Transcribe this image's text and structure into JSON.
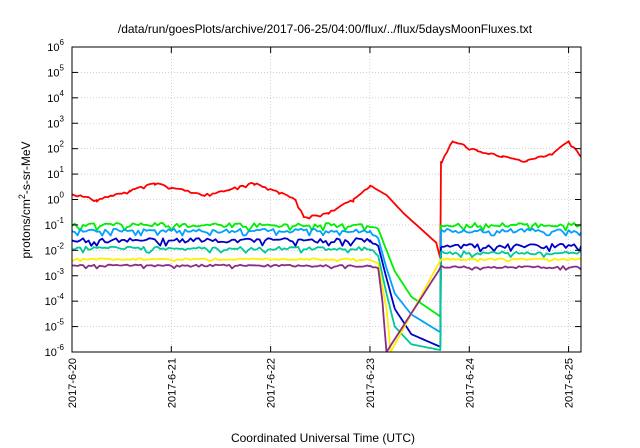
{
  "chart_data": {
    "type": "line",
    "title": "/data/run/goesPlots/archive/2017-06-25/04:00/flux/../flux/5daysMoonFluxes.txt",
    "xlabel": "Coordinated Universal Time (UTC)",
    "ylabel": "protons/cm²-s-sr-MeV",
    "y_scale": "log",
    "ylim": [
      1e-06,
      1000000.0
    ],
    "xlim": [
      "2017-06-20 00:00",
      "2017-06-25 03:00"
    ],
    "x_tick_labels": [
      "2017-6-20",
      "2017-6-21",
      "2017-6-22",
      "2017-6-23",
      "2017-6-24",
      "2017-6-25"
    ],
    "y_tick_labels": [
      {
        "base": "10",
        "exp": "-6"
      },
      {
        "base": "10",
        "exp": "-5"
      },
      {
        "base": "10",
        "exp": "-4"
      },
      {
        "base": "10",
        "exp": "-3"
      },
      {
        "base": "10",
        "exp": "-2"
      },
      {
        "base": "10",
        "exp": "-1"
      },
      {
        "base": "10",
        "exp": "0"
      },
      {
        "base": "10",
        "exp": "1"
      },
      {
        "base": "10",
        "exp": "2"
      },
      {
        "base": "10",
        "exp": "3"
      },
      {
        "base": "10",
        "exp": "4"
      },
      {
        "base": "10",
        "exp": "5"
      },
      {
        "base": "10",
        "exp": "6"
      }
    ],
    "grid": true,
    "legend": "none",
    "series": [
      {
        "color": "#ff0000",
        "noise": 0.04,
        "points": [
          [
            "2017-06-20 00:00",
            1.6
          ],
          [
            "2017-06-20 06:00",
            1.0
          ],
          [
            "2017-06-20 14:00",
            2.2
          ],
          [
            "2017-06-20 20:00",
            4.5
          ],
          [
            "2017-06-21 00:00",
            3.0
          ],
          [
            "2017-06-21 08:00",
            1.5
          ],
          [
            "2017-06-21 14:00",
            2.5
          ],
          [
            "2017-06-21 20:00",
            4.5
          ],
          [
            "2017-06-22 02:00",
            2.0
          ],
          [
            "2017-06-22 06:00",
            1.0
          ],
          [
            "2017-06-22 08:00",
            0.2
          ],
          [
            "2017-06-22 14:00",
            0.3
          ],
          [
            "2017-06-22 20:00",
            1.0
          ],
          [
            "2017-06-23 00:00",
            3.5
          ],
          [
            "2017-06-23 04:00",
            1.5
          ],
          [
            "2017-06-23 08:00",
            0.3
          ],
          [
            "2017-06-23 16:00",
            0.02
          ],
          [
            "2017-06-23 17:00",
            0.005
          ],
          [
            "2017-06-23 17:10",
            30
          ],
          [
            "2017-06-23 20:00",
            200
          ],
          [
            "2017-06-24 02:00",
            80
          ],
          [
            "2017-06-24 08:00",
            50
          ],
          [
            "2017-06-24 14:00",
            35
          ],
          [
            "2017-06-24 20:00",
            60
          ],
          [
            "2017-06-25 00:00",
            200
          ],
          [
            "2017-06-25 03:00",
            50
          ]
        ]
      },
      {
        "color": "#00ee00",
        "noise": 0.1,
        "points": [
          [
            "2017-06-20 00:00",
            0.1
          ],
          [
            "2017-06-23 00:00",
            0.1
          ],
          [
            "2017-06-23 02:00",
            0.07
          ],
          [
            "2017-06-23 04:00",
            0.01
          ],
          [
            "2017-06-23 06:00",
            0.0015
          ],
          [
            "2017-06-23 10:00",
            0.00015
          ],
          [
            "2017-06-23 17:00",
            2.5e-05
          ],
          [
            "2017-06-23 17:10",
            0.1
          ],
          [
            "2017-06-25 03:00",
            0.1
          ]
        ]
      },
      {
        "color": "#00a0ff",
        "noise": 0.09,
        "points": [
          [
            "2017-06-20 00:00",
            0.06
          ],
          [
            "2017-06-23 00:00",
            0.06
          ],
          [
            "2017-06-23 02:00",
            0.03
          ],
          [
            "2017-06-23 04:00",
            0.002
          ],
          [
            "2017-06-23 06:00",
            0.0002
          ],
          [
            "2017-06-23 10:00",
            3e-05
          ],
          [
            "2017-06-23 17:00",
            6e-06
          ],
          [
            "2017-06-23 17:10",
            0.06
          ],
          [
            "2017-06-25 03:00",
            0.06
          ]
        ]
      },
      {
        "color": "#0000c8",
        "noise": 0.1,
        "points": [
          [
            "2017-06-20 00:00",
            0.025
          ],
          [
            "2017-06-23 00:00",
            0.025
          ],
          [
            "2017-06-23 02:00",
            0.015
          ],
          [
            "2017-06-23 04:00",
            0.0008
          ],
          [
            "2017-06-23 06:00",
            5e-05
          ],
          [
            "2017-06-23 10:00",
            5e-06
          ],
          [
            "2017-06-23 17:00",
            1.6e-06
          ],
          [
            "2017-06-23 17:10",
            0.015
          ],
          [
            "2017-06-25 03:00",
            0.015
          ]
        ]
      },
      {
        "color": "#00c896",
        "noise": 0.08,
        "points": [
          [
            "2017-06-20 00:00",
            0.012
          ],
          [
            "2017-06-23 00:00",
            0.012
          ],
          [
            "2017-06-23 02:00",
            0.006
          ],
          [
            "2017-06-23 04:00",
            0.0002
          ],
          [
            "2017-06-23 06:00",
            1e-05
          ],
          [
            "2017-06-23 10:00",
            2e-06
          ],
          [
            "2017-06-23 17:00",
            1.2e-06
          ],
          [
            "2017-06-23 17:10",
            0.008
          ],
          [
            "2017-06-25 03:00",
            0.008
          ]
        ]
      },
      {
        "color": "#ffee00",
        "noise": 0.04,
        "points": [
          [
            "2017-06-20 00:00",
            0.0045
          ],
          [
            "2017-06-23 00:00",
            0.0045
          ],
          [
            "2017-06-23 02:00",
            0.003
          ],
          [
            "2017-06-23 04:00",
            5e-05
          ],
          [
            "2017-06-23 05:00",
            1e-06
          ],
          [
            "2017-06-23 17:10",
            0.0045
          ],
          [
            "2017-06-25 03:00",
            0.0045
          ]
        ]
      },
      {
        "color": "#8b2c87",
        "noise": 0.05,
        "points": [
          [
            "2017-06-20 00:00",
            0.0025
          ],
          [
            "2017-06-23 00:00",
            0.0025
          ],
          [
            "2017-06-23 02:00",
            0.002
          ],
          [
            "2017-06-23 03:00",
            0.0001
          ],
          [
            "2017-06-23 04:00",
            1e-06
          ],
          [
            "2017-06-23 17:10",
            0.0022
          ],
          [
            "2017-06-25 03:00",
            0.0022
          ]
        ]
      }
    ]
  }
}
